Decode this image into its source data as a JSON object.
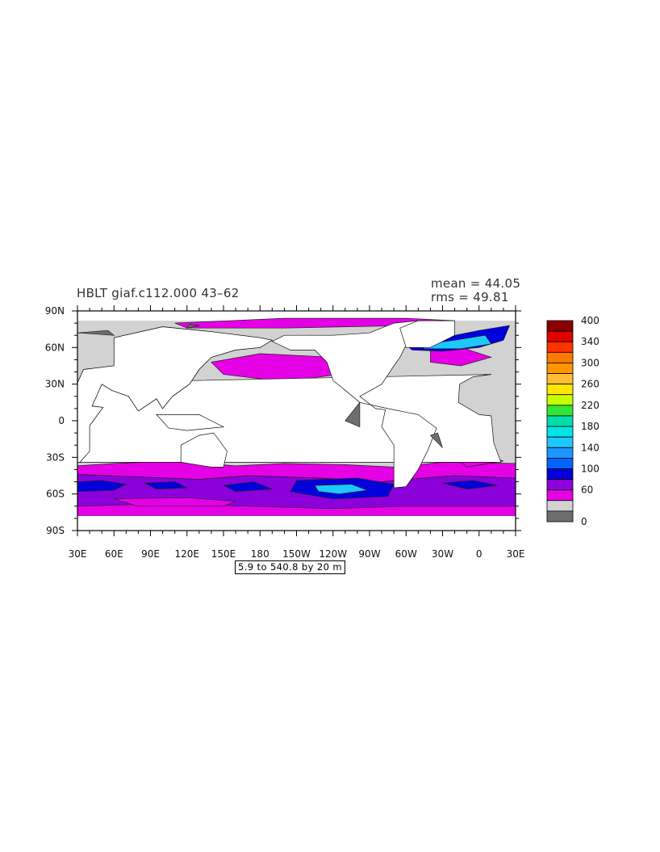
{
  "header": {
    "title": "HBLT giaf.c112.000 ‌43–62‌",
    "mean": "mean = 44.05",
    "rms": "rms = 49.81"
  },
  "range_label": "5.9 to 540.8 by 20 m",
  "chart_data": {
    "type": "heatmap",
    "projection": "global lat-lon map",
    "x_ticks": [
      "30E",
      "60E",
      "90E",
      "120E",
      "150E",
      "180",
      "150W",
      "120W",
      "90W",
      "60W",
      "30W",
      "0",
      "30E"
    ],
    "y_ticks": [
      "90N",
      "60N",
      "30N",
      "0",
      "30S",
      "60S",
      "90S"
    ],
    "colorbar": {
      "labels": [
        "400",
        "340",
        "300",
        "260",
        "220",
        "180",
        "140",
        "100",
        "60",
        "0"
      ],
      "colors": [
        "#8b0000",
        "#e00000",
        "#ff3200",
        "#ff7800",
        "#ff9600",
        "#ffbe32",
        "#ffe600",
        "#c8ff00",
        "#32e632",
        "#00dcaa",
        "#00e6e6",
        "#1ec8ff",
        "#1e96ff",
        "#0064ff",
        "#0000dc",
        "#8c00dc",
        "#e600e6",
        "#d2d2d2",
        "#6e6e6e"
      ]
    },
    "fields": {
      "land": "#ffffff",
      "low": "#d2d2d2",
      "very_low": "#6e6e6e",
      "mid": "#e600e6",
      "high": "#8c00dc",
      "higher": "#0000dc",
      "highest": "#1ec8ff"
    }
  }
}
